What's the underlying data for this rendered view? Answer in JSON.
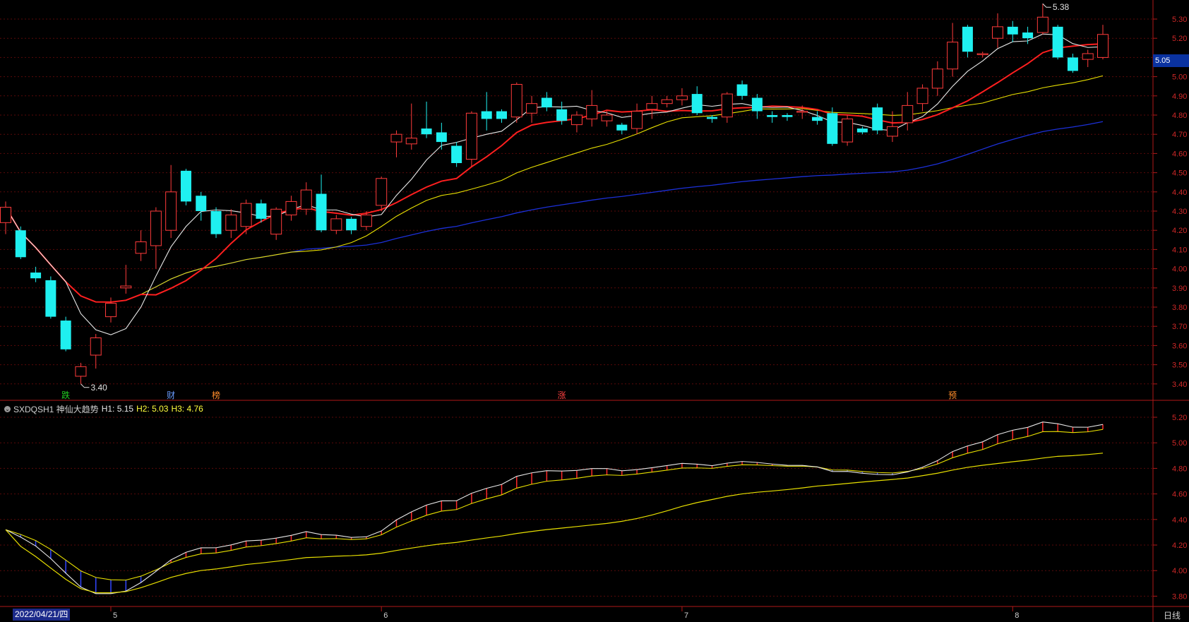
{
  "chart_data": {
    "type": "candlestick",
    "period_label": "日线",
    "current_price": "5.05",
    "cursor_date": "2022/04/21/四",
    "high_annotation": "5.38",
    "low_annotation": "3.40",
    "price_axis_ticks": [
      "5.30",
      "5.20",
      "5.10",
      "5.00",
      "4.90",
      "4.80",
      "4.70",
      "4.60",
      "4.50",
      "4.40",
      "4.30",
      "4.20",
      "4.10",
      "4.00",
      "3.90",
      "3.80",
      "3.70",
      "3.60",
      "3.50",
      "3.40"
    ],
    "indicator_axis_ticks": [
      "5.20",
      "5.00",
      "4.80",
      "4.60",
      "4.40",
      "4.20",
      "4.00",
      "3.80"
    ],
    "month_labels": [
      "5",
      "6",
      "7",
      "8"
    ],
    "event_markers": [
      {
        "text": "跌",
        "color": "#22cc22"
      },
      {
        "text": "财",
        "color": "#6a9cff"
      },
      {
        "text": "榜",
        "color": "#ff8c2a"
      },
      {
        "text": "涨",
        "color": "#ff4040"
      },
      {
        "text": "预",
        "color": "#ff8c2a"
      }
    ],
    "indicator": {
      "name": "SXDQSH1 神仙大趋势",
      "H1_label": "H1: 5.15",
      "H2_label": "H2: 5.03",
      "H3_label": "H3: 4.76"
    },
    "candles": [
      [
        4.24,
        4.32,
        4.18,
        4.35
      ],
      [
        4.2,
        4.06,
        4.05,
        4.22
      ],
      [
        3.98,
        3.95,
        3.93,
        4.01
      ],
      [
        3.94,
        3.75,
        3.74,
        3.96
      ],
      [
        3.73,
        3.58,
        3.57,
        3.75
      ],
      [
        3.44,
        3.49,
        3.4,
        3.51
      ],
      [
        3.55,
        3.64,
        3.48,
        3.66
      ],
      [
        3.75,
        3.82,
        3.72,
        3.85
      ],
      [
        3.9,
        3.91,
        3.87,
        4.02
      ],
      [
        4.08,
        4.14,
        4.04,
        4.2
      ],
      [
        4.12,
        4.3,
        4.0,
        4.32
      ],
      [
        4.2,
        4.4,
        4.16,
        4.54
      ],
      [
        4.51,
        4.35,
        4.33,
        4.52
      ],
      [
        4.38,
        4.3,
        4.25,
        4.4
      ],
      [
        4.3,
        4.18,
        4.16,
        4.32
      ],
      [
        4.2,
        4.28,
        4.16,
        4.31
      ],
      [
        4.22,
        4.34,
        4.18,
        4.36
      ],
      [
        4.34,
        4.26,
        4.24,
        4.36
      ],
      [
        4.18,
        4.31,
        4.15,
        4.32
      ],
      [
        4.28,
        4.35,
        4.25,
        4.38
      ],
      [
        4.31,
        4.41,
        4.28,
        4.45
      ],
      [
        4.39,
        4.2,
        4.19,
        4.49
      ],
      [
        4.2,
        4.26,
        4.18,
        4.28
      ],
      [
        4.26,
        4.2,
        4.18,
        4.27
      ],
      [
        4.22,
        4.28,
        4.2,
        4.3
      ],
      [
        4.33,
        4.47,
        4.3,
        4.48
      ],
      [
        4.66,
        4.7,
        4.58,
        4.72
      ],
      [
        4.65,
        4.68,
        4.62,
        4.86
      ],
      [
        4.73,
        4.7,
        4.68,
        4.87
      ],
      [
        4.71,
        4.66,
        4.62,
        4.76
      ],
      [
        4.64,
        4.55,
        4.53,
        4.66
      ],
      [
        4.57,
        4.81,
        4.53,
        4.82
      ],
      [
        4.82,
        4.78,
        4.72,
        4.92
      ],
      [
        4.82,
        4.78,
        4.76,
        4.83
      ],
      [
        4.79,
        4.96,
        4.76,
        4.97
      ],
      [
        4.81,
        4.86,
        4.76,
        4.9
      ],
      [
        4.89,
        4.84,
        4.82,
        4.92
      ],
      [
        4.83,
        4.77,
        4.75,
        4.87
      ],
      [
        4.75,
        4.8,
        4.71,
        4.82
      ],
      [
        4.78,
        4.85,
        4.74,
        4.93
      ],
      [
        4.77,
        4.8,
        4.74,
        4.82
      ],
      [
        4.75,
        4.72,
        4.7,
        4.76
      ],
      [
        4.73,
        4.82,
        4.7,
        4.86
      ],
      [
        4.83,
        4.86,
        4.78,
        4.9
      ],
      [
        4.86,
        4.88,
        4.84,
        4.9
      ],
      [
        4.88,
        4.9,
        4.85,
        4.94
      ],
      [
        4.91,
        4.81,
        4.8,
        4.95
      ],
      [
        4.79,
        4.78,
        4.76,
        4.8
      ],
      [
        4.79,
        4.91,
        4.76,
        4.92
      ],
      [
        4.96,
        4.9,
        4.88,
        4.98
      ],
      [
        4.89,
        4.82,
        4.78,
        4.91
      ],
      [
        4.8,
        4.79,
        4.76,
        4.82
      ],
      [
        4.8,
        4.79,
        4.77,
        4.81
      ],
      [
        4.82,
        4.82,
        4.78,
        4.85
      ],
      [
        4.79,
        4.77,
        4.75,
        4.82
      ],
      [
        4.81,
        4.65,
        4.64,
        4.84
      ],
      [
        4.66,
        4.78,
        4.64,
        4.8
      ],
      [
        4.73,
        4.71,
        4.7,
        4.74
      ],
      [
        4.84,
        4.72,
        4.7,
        4.86
      ],
      [
        4.69,
        4.74,
        4.66,
        4.82
      ],
      [
        4.76,
        4.85,
        4.72,
        4.92
      ],
      [
        4.86,
        4.94,
        4.82,
        4.96
      ],
      [
        4.94,
        5.04,
        4.9,
        5.08
      ],
      [
        5.04,
        5.18,
        5.0,
        5.28
      ],
      [
        5.26,
        5.13,
        5.1,
        5.27
      ],
      [
        5.12,
        5.12,
        5.1,
        5.13
      ],
      [
        5.2,
        5.26,
        5.15,
        5.33
      ],
      [
        5.26,
        5.22,
        5.18,
        5.29
      ],
      [
        5.23,
        5.2,
        5.17,
        5.26
      ],
      [
        5.23,
        5.31,
        5.22,
        5.38
      ],
      [
        5.26,
        5.1,
        5.09,
        5.27
      ],
      [
        5.1,
        5.03,
        5.02,
        5.12
      ],
      [
        5.09,
        5.12,
        5.05,
        5.14
      ],
      [
        5.1,
        5.22,
        5.09,
        5.27
      ]
    ]
  }
}
